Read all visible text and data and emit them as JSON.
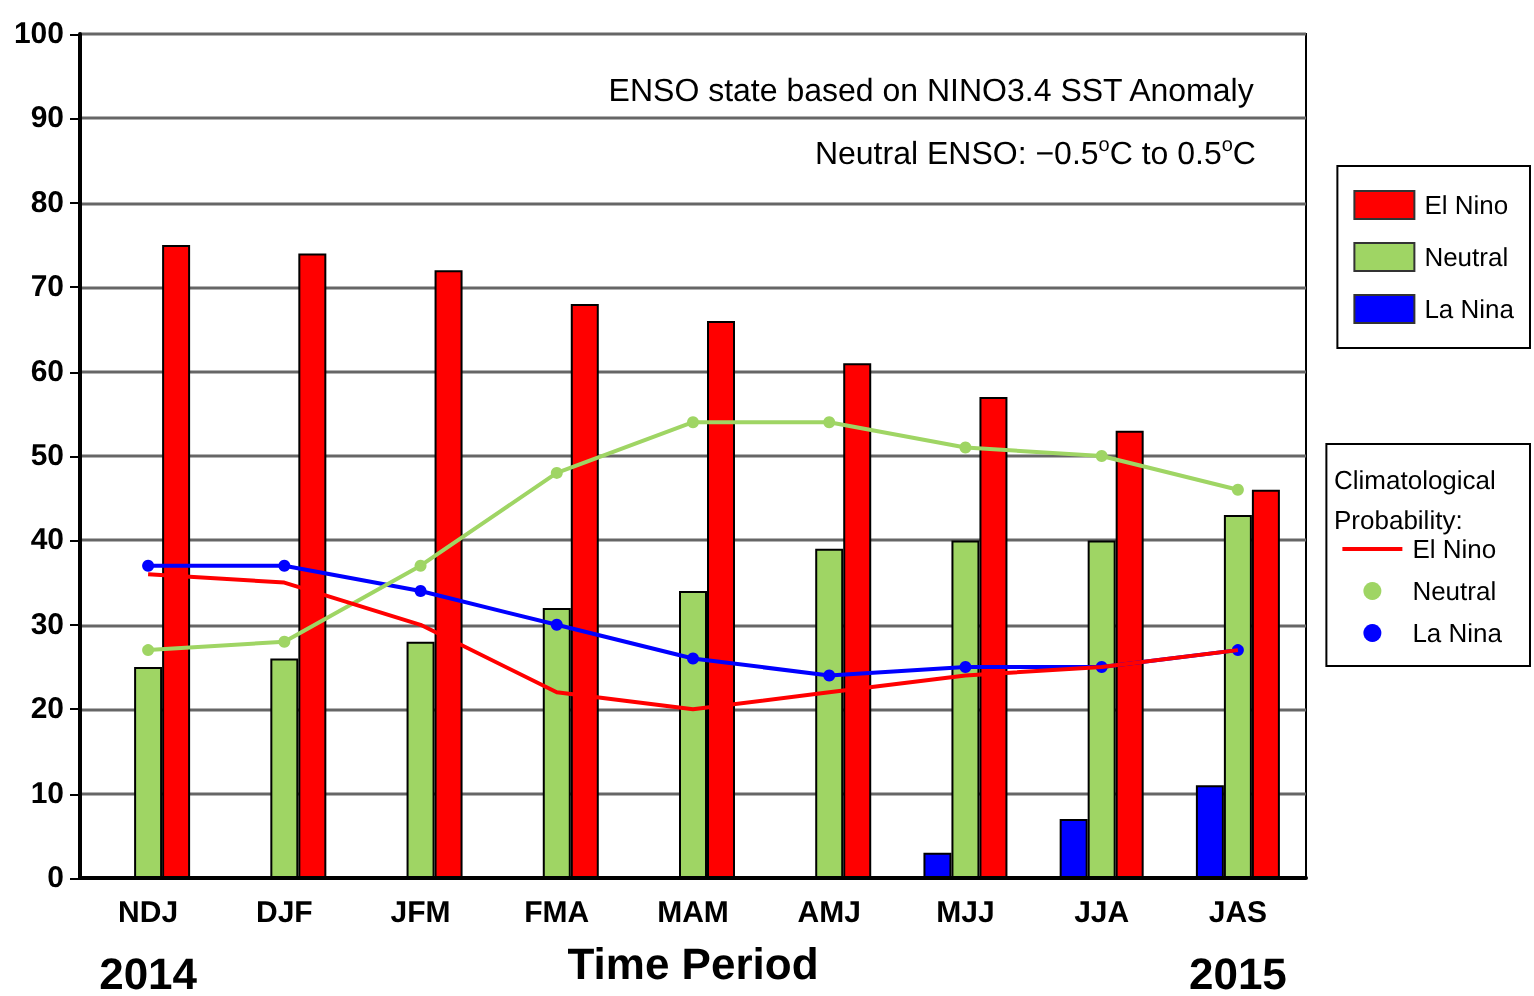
{
  "chart_data": {
    "type": "bar",
    "xlabel": "Time Period",
    "legend_title": "Climatological Probability:",
    "categories": [
      "NDJ",
      "DJF",
      "JFM",
      "FMA",
      "MAM",
      "AMJ",
      "MJJ",
      "JJA",
      "JAS"
    ],
    "series": [
      {
        "name": "La Nina",
        "color": "#0000ff",
        "values": [
          null,
          null,
          null,
          null,
          null,
          null,
          3,
          7,
          11
        ]
      },
      {
        "name": "Neutral",
        "color": "#9fd564",
        "values": [
          25,
          26,
          28,
          32,
          34,
          39,
          40,
          40,
          43
        ]
      },
      {
        "name": "El Nino",
        "color": "#ff0000",
        "values": [
          75,
          74,
          72,
          68,
          66,
          61,
          57,
          53,
          46
        ]
      },
      {
        "name": "El Nino",
        "type": "line",
        "marker": "none",
        "color": "#ff0000",
        "values": [
          36,
          35,
          30,
          22,
          20,
          22,
          24,
          25,
          27
        ]
      },
      {
        "name": "Neutral",
        "type": "line",
        "marker": "circle",
        "color": "#9fd564",
        "values": [
          27,
          28,
          37,
          48,
          54,
          54,
          51,
          50,
          46
        ]
      },
      {
        "name": "La Nina",
        "type": "line",
        "marker": "circle",
        "color": "#0000ff",
        "values": [
          37,
          37,
          34,
          30,
          26,
          24,
          25,
          25,
          27
        ]
      }
    ],
    "ylim": [
      0,
      100
    ],
    "yticks": [
      0,
      10,
      20,
      30,
      40,
      50,
      60,
      70,
      80,
      90,
      100
    ],
    "grid": "y",
    "legend": "right",
    "annotations": [
      "ENSO state based on NINO3.4 SST Anomaly",
      "Neutral ENSO: −0.5$^{o}$C to 0.5$^{o}$C",
      "2014",
      "2015"
    ]
  }
}
